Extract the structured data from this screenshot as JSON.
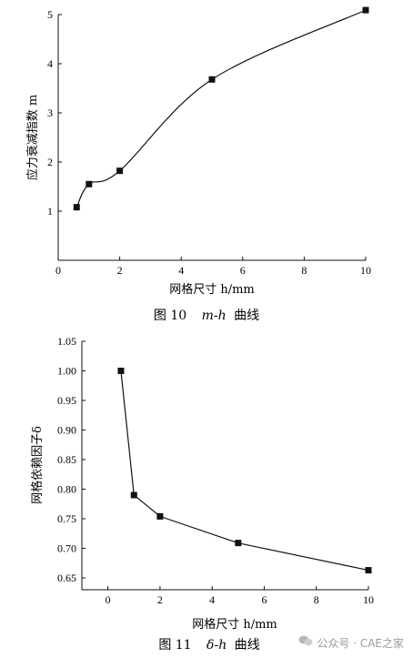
{
  "chart_data": [
    {
      "type": "line",
      "xlabel": "网格尺寸 h/mm",
      "ylabel": "应力衰减指数 m",
      "xlim": [
        0,
        10
      ],
      "ylim": [
        0,
        5
      ],
      "xticks": [
        0,
        2,
        4,
        6,
        8,
        10
      ],
      "yticks": [
        1,
        2,
        3,
        4,
        5
      ],
      "smooth": true,
      "series": [
        {
          "x": [
            0.6,
            1.0,
            2.0,
            5.0,
            10.0
          ],
          "y": [
            1.08,
            1.55,
            1.82,
            3.68,
            5.09
          ]
        }
      ],
      "caption": {
        "num": "图 10",
        "var": "m-h",
        "suffix": "曲线"
      }
    },
    {
      "type": "line",
      "xlabel": "网格尺寸 h/mm",
      "ylabel": "网格依赖因子δ",
      "xlim": [
        -1,
        10
      ],
      "ylim": [
        0.63,
        1.05
      ],
      "xticks": [
        0,
        2,
        4,
        6,
        8,
        10
      ],
      "yticks": [
        0.65,
        0.7,
        0.75,
        0.8,
        0.85,
        0.9,
        0.95,
        1.0,
        1.05
      ],
      "ytick_labels": [
        "0.65",
        "0.70",
        "0.75",
        "0.80",
        "0.85",
        "0.90",
        "0.95",
        "1.00",
        "1.05"
      ],
      "smooth": false,
      "series": [
        {
          "x": [
            0.5,
            1.0,
            2.0,
            5.0,
            10.0
          ],
          "y": [
            1.0,
            0.79,
            0.754,
            0.709,
            0.663
          ]
        }
      ],
      "caption": {
        "num": "图 11",
        "var": "δ-h",
        "suffix": "曲线"
      }
    }
  ],
  "watermark": "公众号 · CAE之家"
}
